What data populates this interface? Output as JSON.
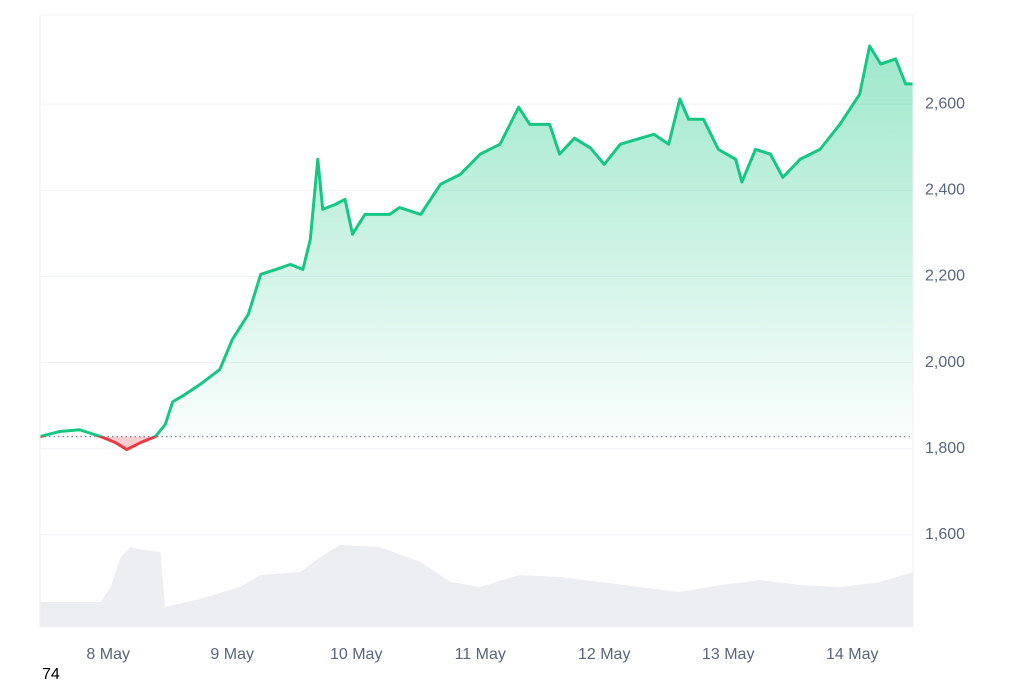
{
  "chart_data": {
    "type": "line",
    "x": [
      7.45,
      7.61,
      7.77,
      7.94,
      8.06,
      8.15,
      8.26,
      8.38,
      8.46,
      8.52,
      8.62,
      8.74,
      8.9,
      9.0,
      9.13,
      9.23,
      9.35,
      9.47,
      9.57,
      9.63,
      9.69,
      9.73,
      9.83,
      9.91,
      9.97,
      10.07,
      10.27,
      10.35,
      10.52,
      10.68,
      10.84,
      11.0,
      11.16,
      11.31,
      11.4,
      11.56,
      11.64,
      11.76,
      11.89,
      12.0,
      12.13,
      12.27,
      12.4,
      12.52,
      12.61,
      12.68,
      12.8,
      12.92,
      13.06,
      13.11,
      13.22,
      13.34,
      13.44,
      13.58,
      13.74,
      13.9,
      14.06,
      14.14,
      14.23,
      14.35,
      14.43,
      14.49
    ],
    "series": [
      {
        "color": "#16c784",
        "negative_color": "#ea3943",
        "values": [
          1828,
          1840,
          1844,
          1828,
          1814,
          1798,
          1814,
          1828,
          1856,
          1909,
          1926,
          1949,
          1984,
          2053,
          2112,
          2205,
          2216,
          2228,
          2216,
          2286,
          2472,
          2356,
          2367,
          2379,
          2298,
          2344,
          2344,
          2360,
          2344,
          2414,
          2437,
          2484,
          2507,
          2593,
          2553,
          2553,
          2484,
          2521,
          2498,
          2460,
          2507,
          2519,
          2530,
          2507,
          2612,
          2565,
          2565,
          2495,
          2472,
          2419,
          2495,
          2484,
          2430,
          2472,
          2495,
          2553,
          2623,
          2735,
          2693,
          2705,
          2647,
          2647
        ]
      }
    ],
    "baseline": 1828,
    "volume": {
      "color": "#eceef2",
      "x": [
        7.45,
        7.94,
        8.02,
        8.1,
        8.18,
        8.24,
        8.42,
        8.46,
        8.74,
        9.06,
        9.23,
        9.55,
        9.71,
        9.87,
        10.19,
        10.52,
        10.76,
        11.0,
        11.32,
        11.65,
        11.97,
        12.29,
        12.61,
        12.94,
        13.26,
        13.58,
        13.9,
        14.23,
        14.49
      ],
      "values": [
        25,
        25,
        40,
        70,
        80,
        78,
        75,
        20,
        28,
        40,
        52,
        55,
        70,
        82,
        80,
        65,
        45,
        40,
        52,
        50,
        45,
        40,
        35,
        42,
        47,
        42,
        40,
        45,
        55
      ]
    },
    "xlim": [
      7.45,
      14.49
    ],
    "xticks": [
      {
        "value": 8,
        "label": "8 May"
      },
      {
        "value": 9,
        "label": "9 May"
      },
      {
        "value": 10,
        "label": "10 May"
      },
      {
        "value": 11,
        "label": "11 May"
      },
      {
        "value": 12,
        "label": "12 May"
      },
      {
        "value": 13,
        "label": "13 May"
      },
      {
        "value": 14,
        "label": "14 May"
      }
    ],
    "ylim": [
      1386,
      2807
    ],
    "yticks": [
      {
        "value": 1600,
        "label": "1,600"
      },
      {
        "value": 1800,
        "label": "1,800"
      },
      {
        "value": 2000,
        "label": "2,000"
      },
      {
        "value": 2200,
        "label": "2,200"
      },
      {
        "value": 2400,
        "label": "2,400"
      },
      {
        "value": 2600,
        "label": "2,600"
      }
    ],
    "y2lim": [
      0,
      100
    ],
    "grid": true,
    "footnote": "74"
  }
}
